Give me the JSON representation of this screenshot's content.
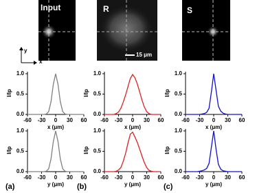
{
  "panels": [
    {
      "label": "Input"
    },
    {
      "label": "R",
      "scalebar": "15 μm"
    },
    {
      "label": "S"
    }
  ],
  "axes_indicator": {
    "y": "y",
    "x": "x"
  },
  "panel_letters": [
    "(a)",
    "(b)",
    "(c)"
  ],
  "chart_data": [
    {
      "type": "line",
      "xlabel": "x (μm)",
      "ylabel": "I/Ip",
      "color": "#808080",
      "x": [
        -60,
        -55,
        -50,
        -45,
        -40,
        -35,
        -30,
        -25,
        -20,
        -15,
        -10,
        -5,
        0,
        5,
        10,
        15,
        20,
        25,
        30,
        35,
        40,
        45,
        50,
        55,
        60
      ],
      "values": [
        0,
        0,
        0,
        0,
        0,
        0,
        0,
        0,
        0.01,
        0.07,
        0.31,
        0.74,
        1,
        0.74,
        0.31,
        0.07,
        0.01,
        0,
        0,
        0,
        0,
        0,
        0,
        0,
        0
      ],
      "xlim": [
        -60,
        60
      ],
      "xticks": [
        -60,
        -30,
        0,
        30,
        60
      ],
      "ylim": [
        0,
        1.05
      ],
      "yticks": [
        {
          "value": 0,
          "label": "0.0"
        },
        {
          "value": 0.5,
          "label": "0.5"
        },
        {
          "value": 1,
          "label": "1.0"
        }
      ]
    },
    {
      "type": "line",
      "xlabel": "x (μm)",
      "ylabel": "I/Ip",
      "color": "#e02020",
      "x": [
        -60,
        -55,
        -50,
        -45,
        -40,
        -35,
        -30,
        -25,
        -20,
        -15,
        -10,
        -5,
        0,
        5,
        10,
        15,
        20,
        25,
        30,
        35,
        40,
        45,
        50,
        55,
        60
      ],
      "values": [
        0,
        0,
        0,
        0,
        0,
        0.02,
        0.06,
        0.15,
        0.3,
        0.48,
        0.68,
        0.88,
        0.98,
        0.9,
        0.75,
        0.55,
        0.35,
        0.18,
        0.07,
        0.02,
        0,
        0,
        0,
        0,
        0
      ],
      "xlim": [
        -60,
        60
      ],
      "xticks": [
        -60,
        -30,
        0,
        30,
        60
      ],
      "ylim": [
        0,
        1.05
      ],
      "yticks": [
        {
          "value": 0,
          "label": "0.0"
        },
        {
          "value": 0.5,
          "label": "0.5"
        },
        {
          "value": 1,
          "label": "1.0"
        }
      ]
    },
    {
      "type": "line",
      "xlabel": "x (μm)",
      "ylabel": "I/Ip",
      "color": "#1010d0",
      "x": [
        -60,
        -55,
        -50,
        -45,
        -40,
        -35,
        -30,
        -25,
        -20,
        -15,
        -10,
        -5,
        0,
        5,
        10,
        15,
        20,
        25,
        30,
        35,
        40,
        45,
        50,
        55,
        60
      ],
      "values": [
        0,
        0,
        0,
        0,
        0,
        0,
        0,
        0.01,
        0.02,
        0.05,
        0.15,
        0.55,
        1,
        0.6,
        0.2,
        0.08,
        0.03,
        0.01,
        0,
        0,
        0,
        0,
        0,
        0,
        0
      ],
      "xlim": [
        -60,
        60
      ],
      "xticks": [
        -60,
        -30,
        0,
        30,
        60
      ],
      "ylim": [
        0,
        1.05
      ],
      "yticks": [
        {
          "value": 0,
          "label": "0.0"
        },
        {
          "value": 0.5,
          "label": "0.5"
        },
        {
          "value": 1,
          "label": "1.0"
        }
      ]
    },
    {
      "type": "line",
      "xlabel": "y (μm)",
      "ylabel": "I/Ip",
      "color": "#808080",
      "x": [
        -60,
        -55,
        -50,
        -45,
        -40,
        -35,
        -30,
        -25,
        -20,
        -15,
        -10,
        -5,
        0,
        5,
        10,
        15,
        20,
        25,
        30,
        35,
        40,
        45,
        50,
        55,
        60
      ],
      "values": [
        0,
        0,
        0,
        0,
        0,
        0,
        0,
        0,
        0.01,
        0.07,
        0.31,
        0.74,
        1,
        0.74,
        0.31,
        0.07,
        0.01,
        0,
        0,
        0,
        0,
        0,
        0,
        0,
        0
      ],
      "xlim": [
        -60,
        60
      ],
      "xticks": [
        -60,
        -30,
        0,
        30,
        60
      ],
      "ylim": [
        0,
        1.05
      ],
      "yticks": [
        {
          "value": 0,
          "label": "0.0"
        },
        {
          "value": 0.5,
          "label": "0.5"
        },
        {
          "value": 1,
          "label": "1.0"
        }
      ]
    },
    {
      "type": "line",
      "xlabel": "y (μm)",
      "ylabel": "I/Ip",
      "color": "#e02020",
      "x": [
        -60,
        -55,
        -50,
        -45,
        -40,
        -35,
        -30,
        -25,
        -20,
        -15,
        -10,
        -5,
        0,
        5,
        10,
        15,
        20,
        25,
        30,
        35,
        40,
        45,
        50,
        55,
        60
      ],
      "values": [
        0,
        0,
        0,
        0,
        0,
        0.01,
        0.04,
        0.1,
        0.25,
        0.45,
        0.7,
        0.92,
        0.97,
        0.85,
        0.72,
        0.55,
        0.38,
        0.22,
        0.1,
        0.03,
        0.01,
        0,
        0,
        0,
        0
      ],
      "xlim": [
        -60,
        60
      ],
      "xticks": [
        -60,
        -30,
        0,
        30,
        60
      ],
      "ylim": [
        0,
        1.05
      ],
      "yticks": [
        {
          "value": 0,
          "label": "0.0"
        },
        {
          "value": 0.5,
          "label": "0.5"
        },
        {
          "value": 1,
          "label": "1.0"
        }
      ]
    },
    {
      "type": "line",
      "xlabel": "y (μm)",
      "ylabel": "I/Ip",
      "color": "#1010d0",
      "x": [
        -60,
        -55,
        -50,
        -45,
        -40,
        -35,
        -30,
        -25,
        -20,
        -15,
        -10,
        -5,
        0,
        5,
        10,
        15,
        20,
        25,
        30,
        35,
        40,
        45,
        50,
        55,
        60
      ],
      "values": [
        0,
        0,
        0,
        0,
        0,
        0,
        0.01,
        0.02,
        0.04,
        0.08,
        0.2,
        0.6,
        1,
        0.55,
        0.18,
        0.06,
        0.02,
        0.01,
        0,
        0,
        0,
        0,
        0,
        0,
        0
      ],
      "xlim": [
        -60,
        60
      ],
      "xticks": [
        -60,
        -30,
        0,
        30,
        60
      ],
      "ylim": [
        0,
        1.05
      ],
      "yticks": [
        {
          "value": 0,
          "label": "0.0"
        },
        {
          "value": 0.5,
          "label": "0.5"
        },
        {
          "value": 1,
          "label": "1.0"
        }
      ]
    }
  ]
}
